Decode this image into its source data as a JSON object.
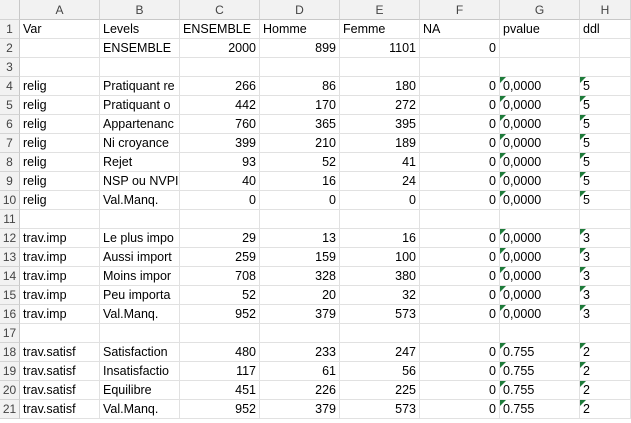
{
  "columns": [
    "A",
    "B",
    "C",
    "D",
    "E",
    "F",
    "G",
    "H"
  ],
  "rows": [
    {
      "n": "1",
      "A": "Var",
      "B": "Levels",
      "C": "ENSEMBLE",
      "D": "Homme",
      "E": "Femme",
      "F": "NA",
      "G": "pvalue",
      "H": "ddl",
      "hdr": true
    },
    {
      "n": "2",
      "A": "",
      "B": "ENSEMBLE",
      "C": "2000",
      "D": "899",
      "E": "1101",
      "F": "0",
      "G": "",
      "H": ""
    },
    {
      "n": "3",
      "A": "",
      "B": "",
      "C": "",
      "D": "",
      "E": "",
      "F": "",
      "G": "",
      "H": ""
    },
    {
      "n": "4",
      "A": "relig",
      "B": "Pratiquant re",
      "C": "266",
      "D": "86",
      "E": "180",
      "F": "0",
      "G": "0,0000",
      "H": "5",
      "flag": true
    },
    {
      "n": "5",
      "A": "relig",
      "B": "Pratiquant o",
      "C": "442",
      "D": "170",
      "E": "272",
      "F": "0",
      "G": "0,0000",
      "H": "5",
      "flag": true
    },
    {
      "n": "6",
      "A": "relig",
      "B": "Appartenanc",
      "C": "760",
      "D": "365",
      "E": "395",
      "F": "0",
      "G": "0,0000",
      "H": "5",
      "flag": true
    },
    {
      "n": "7",
      "A": "relig",
      "B": "Ni croyance",
      "C": "399",
      "D": "210",
      "E": "189",
      "F": "0",
      "G": "0,0000",
      "H": "5",
      "flag": true
    },
    {
      "n": "8",
      "A": "relig",
      "B": "Rejet",
      "C": "93",
      "D": "52",
      "E": "41",
      "F": "0",
      "G": "0,0000",
      "H": "5",
      "flag": true
    },
    {
      "n": "9",
      "A": "relig",
      "B": "NSP ou NVPI",
      "C": "40",
      "D": "16",
      "E": "24",
      "F": "0",
      "G": "0,0000",
      "H": "5",
      "flag": true
    },
    {
      "n": "10",
      "A": "relig",
      "B": "Val.Manq.",
      "C": "0",
      "D": "0",
      "E": "0",
      "F": "0",
      "G": "0,0000",
      "H": "5",
      "flag": true
    },
    {
      "n": "11",
      "A": "",
      "B": "",
      "C": "",
      "D": "",
      "E": "",
      "F": "",
      "G": "",
      "H": ""
    },
    {
      "n": "12",
      "A": "trav.imp",
      "B": "Le plus impo",
      "C": "29",
      "D": "13",
      "E": "16",
      "F": "0",
      "G": "0,0000",
      "H": "3",
      "flag": true
    },
    {
      "n": "13",
      "A": "trav.imp",
      "B": "Aussi import",
      "C": "259",
      "D": "159",
      "E": "100",
      "F": "0",
      "G": "0,0000",
      "H": "3",
      "flag": true
    },
    {
      "n": "14",
      "A": "trav.imp",
      "B": "Moins impor",
      "C": "708",
      "D": "328",
      "E": "380",
      "F": "0",
      "G": "0,0000",
      "H": "3",
      "flag": true
    },
    {
      "n": "15",
      "A": "trav.imp",
      "B": "Peu importa",
      "C": "52",
      "D": "20",
      "E": "32",
      "F": "0",
      "G": "0,0000",
      "H": "3",
      "flag": true
    },
    {
      "n": "16",
      "A": "trav.imp",
      "B": "Val.Manq.",
      "C": "952",
      "D": "379",
      "E": "573",
      "F": "0",
      "G": "0,0000",
      "H": "3",
      "flag": true
    },
    {
      "n": "17",
      "A": "",
      "B": "",
      "C": "",
      "D": "",
      "E": "",
      "F": "",
      "G": "",
      "H": ""
    },
    {
      "n": "18",
      "A": "trav.satisf",
      "B": "Satisfaction",
      "C": "480",
      "D": "233",
      "E": "247",
      "F": "0",
      "G": "0.755",
      "H": "2",
      "flag": true
    },
    {
      "n": "19",
      "A": "trav.satisf",
      "B": "Insatisfactio",
      "C": "117",
      "D": "61",
      "E": "56",
      "F": "0",
      "G": "0.755",
      "H": "2",
      "flag": true
    },
    {
      "n": "20",
      "A": "trav.satisf",
      "B": "Equilibre",
      "C": "451",
      "D": "226",
      "E": "225",
      "F": "0",
      "G": "0.755",
      "H": "2",
      "flag": true
    },
    {
      "n": "21",
      "A": "trav.satisf",
      "B": "Val.Manq.",
      "C": "952",
      "D": "379",
      "E": "573",
      "F": "0",
      "G": "0.755",
      "H": "2",
      "flag": true
    }
  ]
}
